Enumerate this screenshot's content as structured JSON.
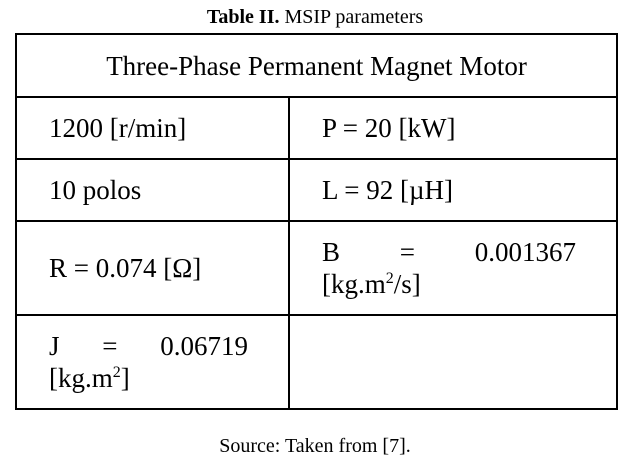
{
  "caption": {
    "label": "Table II.",
    "text": " MSIP parameters"
  },
  "table": {
    "header": "Three-Phase Permanent Magnet Motor",
    "cells": {
      "speed": "1200 [r/min]",
      "power": "P = 20 [kW]",
      "poles": "10 polos",
      "inductance": "L = 92 [µH]",
      "resistance": "R = 0.074 [Ω]",
      "friction_symbol": "B",
      "friction_eq": "=",
      "friction_value": "0.001367",
      "friction_unit_prefix": "[kg.m",
      "friction_unit_exp": "2",
      "friction_unit_suffix": "/s]",
      "inertia_symbol": "J",
      "inertia_eq": "=",
      "inertia_value": "0.06719",
      "inertia_unit_prefix": "[kg.m",
      "inertia_unit_exp": "2",
      "inertia_unit_suffix": "]"
    }
  },
  "source": "Source: Taken from [7]."
}
